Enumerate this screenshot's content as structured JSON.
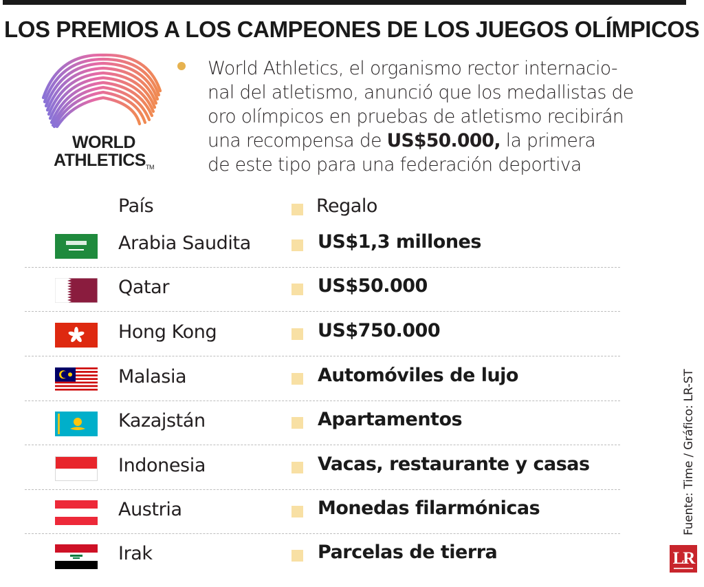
{
  "title": "LOS PREMIOS A LOS CAMPEONES DE LOS JUEGOS OLÍMPICOS",
  "logo": {
    "line1": "WORLD",
    "line2": "ATHLETICS",
    "tm": "TM"
  },
  "intro": {
    "line1": "World Athletics, el organismo rector internacio-",
    "line2": "nal del atletismo, anunció que los medallistas de",
    "line3": "oro olímpicos en pruebas de atletismo recibirán",
    "line4_pre": "una recompensa de ",
    "line4_bold": "US$50.000,",
    "line4_post": " la primera",
    "line5": "de este tipo para una federación deportiva"
  },
  "table": {
    "header_country": "País",
    "header_gift": "Regalo",
    "rows": [
      {
        "country": "Arabia Saudita",
        "gift": "US$1,3 millones"
      },
      {
        "country": "Qatar",
        "gift": "US$50.000"
      },
      {
        "country": "Hong Kong",
        "gift": "US$750.000"
      },
      {
        "country": "Malasia",
        "gift": "Automóviles de lujo"
      },
      {
        "country": "Kazajstán",
        "gift": "Apartamentos"
      },
      {
        "country": "Indonesia",
        "gift": "Vacas, restaurante y casas"
      },
      {
        "country": "Austria",
        "gift": "Monedas filarmónicas"
      },
      {
        "country": "Irak",
        "gift": "Parcelas de tierra"
      }
    ]
  },
  "source": "Fuente: Time / Gráfico: LR-ST",
  "badge": "LR",
  "colors": {
    "bullet": "#e6b24f",
    "square": "#f8e0a4",
    "badge": "#c8252c"
  }
}
